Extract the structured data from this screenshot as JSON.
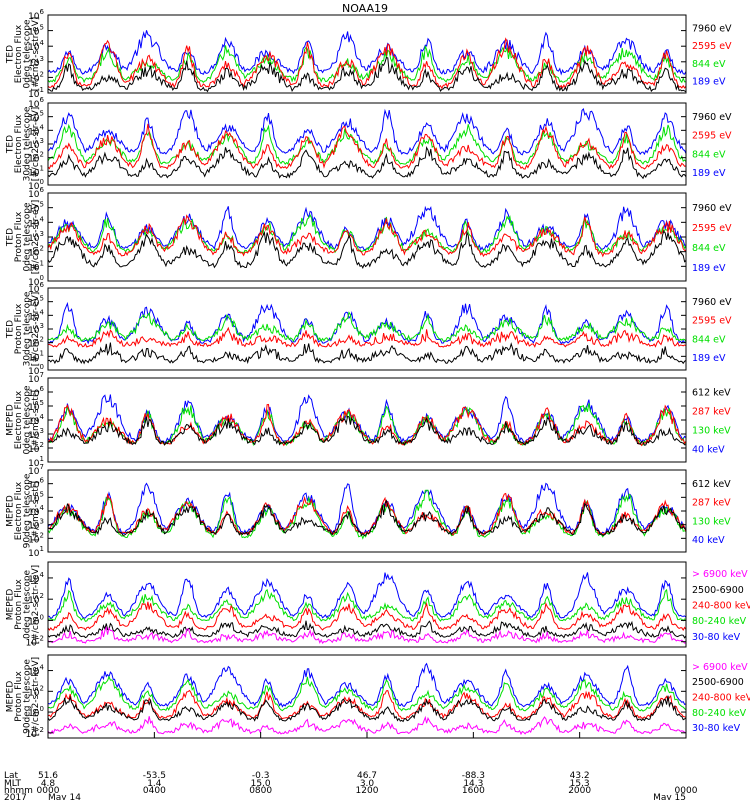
{
  "title": "NOAA19",
  "colors": {
    "black": "#000000",
    "blue": "#0000ff",
    "red": "#ff0000",
    "green": "#00e000",
    "magenta": "#ff00ff"
  },
  "ylabel_tick_bases": [
    "10"
  ],
  "chart_data": [
    {
      "type": "line",
      "instrument": "TED",
      "ylabel": [
        "TED",
        "Electron Flux",
        "0deg telescope",
        "[#/cm2-s-str-eV]"
      ],
      "ytick_exponents": [
        1,
        2,
        3,
        4,
        5,
        6
      ],
      "ylim_log10": [
        1,
        6
      ],
      "legend": [
        {
          "label": "7960 eV",
          "color": "#000000"
        },
        {
          "label": "2595 eV",
          "color": "#ff0000"
        },
        {
          "label": "844 eV",
          "color": "#00e000"
        },
        {
          "label": "189 eV",
          "color": "#0000ff"
        }
      ],
      "series_levels_log10": [
        {
          "color": "#0000ff",
          "base": 2.3,
          "amp": 2.3
        },
        {
          "color": "#00e000",
          "base": 1.8,
          "amp": 2.0
        },
        {
          "color": "#ff0000",
          "base": 1.4,
          "amp": 2.6
        },
        {
          "color": "#000000",
          "base": 1.2,
          "amp": 1.6
        }
      ]
    },
    {
      "type": "line",
      "instrument": "TED",
      "ylabel": [
        "TED",
        "Electron Flux",
        "30deg telescope",
        "[#/cm2-s-str-eV]"
      ],
      "ytick_exponents": [
        0,
        1,
        2,
        3,
        4,
        5,
        6
      ],
      "ylim_log10": [
        0,
        6
      ],
      "legend": [
        {
          "label": "7960 eV",
          "color": "#000000"
        },
        {
          "label": "2595 eV",
          "color": "#ff0000"
        },
        {
          "label": "844 eV",
          "color": "#00e000"
        },
        {
          "label": "189 eV",
          "color": "#0000ff"
        }
      ],
      "series_levels_log10": [
        {
          "color": "#0000ff",
          "base": 2.3,
          "amp": 3.0
        },
        {
          "color": "#00e000",
          "base": 1.6,
          "amp": 2.4
        },
        {
          "color": "#ff0000",
          "base": 1.2,
          "amp": 2.8
        },
        {
          "color": "#000000",
          "base": 0.6,
          "amp": 1.8
        }
      ]
    },
    {
      "type": "line",
      "instrument": "TED",
      "ylabel": [
        "TED",
        "Proton Flux",
        "0deg telescope",
        "[#/cm2-s-str-eV]"
      ],
      "ytick_exponents": [
        0,
        1,
        2,
        3,
        4,
        5,
        6
      ],
      "ylim_log10": [
        0,
        6
      ],
      "legend": [
        {
          "label": "7960 eV",
          "color": "#000000"
        },
        {
          "label": "2595 eV",
          "color": "#ff0000"
        },
        {
          "label": "844 eV",
          "color": "#00e000"
        },
        {
          "label": "189 eV",
          "color": "#0000ff"
        }
      ],
      "series_levels_log10": [
        {
          "color": "#0000ff",
          "base": 2.2,
          "amp": 2.6
        },
        {
          "color": "#00e000",
          "base": 2.0,
          "amp": 2.2
        },
        {
          "color": "#ff0000",
          "base": 1.8,
          "amp": 2.2
        },
        {
          "color": "#000000",
          "base": 1.0,
          "amp": 2.0
        }
      ]
    },
    {
      "type": "line",
      "instrument": "TED",
      "ylabel": [
        "TED",
        "Proton Flux",
        "30deg telescope",
        "[#/cm2-s-str-eV]"
      ],
      "ytick_exponents": [
        0,
        1,
        2,
        3,
        4,
        5,
        6
      ],
      "ylim_log10": [
        0,
        6
      ],
      "legend": [
        {
          "label": "7960 eV",
          "color": "#000000"
        },
        {
          "label": "2595 eV",
          "color": "#ff0000"
        },
        {
          "label": "844 eV",
          "color": "#00e000"
        },
        {
          "label": "189 eV",
          "color": "#0000ff"
        }
      ],
      "series_levels_log10": [
        {
          "color": "#0000ff",
          "base": 2.0,
          "amp": 2.6
        },
        {
          "color": "#00e000",
          "base": 2.2,
          "amp": 1.6
        },
        {
          "color": "#ff0000",
          "base": 1.8,
          "amp": 0.8
        },
        {
          "color": "#000000",
          "base": 0.6,
          "amp": 1.0
        }
      ]
    },
    {
      "type": "line",
      "instrument": "MEPED",
      "ylabel": [
        "MEPED",
        "Electron Flux",
        "0deg telescope",
        "[#/cm2-s-str]"
      ],
      "ytick_exponents": [
        1,
        2,
        3,
        4,
        5,
        6,
        7
      ],
      "ylim_log10": [
        1,
        7
      ],
      "legend": [
        {
          "label": "612 keV",
          "color": "#000000"
        },
        {
          "label": "287 keV",
          "color": "#ff0000"
        },
        {
          "label": "130 keV",
          "color": "#00e000"
        },
        {
          "label": "40 keV",
          "color": "#0000ff"
        }
      ],
      "series_levels_log10": [
        {
          "color": "#0000ff",
          "base": 2.5,
          "amp": 3.0
        },
        {
          "color": "#00e000",
          "base": 2.3,
          "amp": 2.6
        },
        {
          "color": "#ff0000",
          "base": 2.3,
          "amp": 2.4
        },
        {
          "color": "#000000",
          "base": 2.3,
          "amp": 1.6
        }
      ]
    },
    {
      "type": "line",
      "instrument": "MEPED",
      "ylabel": [
        "MEPED",
        "Electron Flux",
        "90deg telescope",
        "[#/cm2-s-str]"
      ],
      "ytick_exponents": [
        1,
        2,
        3,
        4,
        5,
        6,
        7
      ],
      "ylim_log10": [
        1,
        7
      ],
      "legend": [
        {
          "label": "612 keV",
          "color": "#000000"
        },
        {
          "label": "287 keV",
          "color": "#ff0000"
        },
        {
          "label": "130 keV",
          "color": "#00e000"
        },
        {
          "label": "40 keV",
          "color": "#0000ff"
        }
      ],
      "series_levels_log10": [
        {
          "color": "#0000ff",
          "base": 2.4,
          "amp": 3.4
        },
        {
          "color": "#00e000",
          "base": 2.1,
          "amp": 3.0
        },
        {
          "color": "#ff0000",
          "base": 2.3,
          "amp": 2.6
        },
        {
          "color": "#000000",
          "base": 2.3,
          "amp": 2.0
        }
      ]
    },
    {
      "type": "line",
      "instrument": "MEPED",
      "ylabel": [
        "MEPED",
        "Proton Flux",
        "0deg telescope",
        "[#/cm2-s-str-keV]"
      ],
      "ytick_exponents": [
        -2,
        0,
        2,
        4
      ],
      "ylim_log10": [
        -2.5,
        5.5
      ],
      "legend": [
        {
          "label": "> 6900 keV",
          "color": "#ff00ff"
        },
        {
          "label": "2500-6900",
          "color": "#000000"
        },
        {
          "label": "240-800 keV",
          "color": "#ff0000"
        },
        {
          "label": "80-240 keV",
          "color": "#00e000"
        },
        {
          "label": "30-80 keV",
          "color": "#0000ff"
        }
      ],
      "series_levels_log10": [
        {
          "color": "#0000ff",
          "base": 0.3,
          "amp": 3.8
        },
        {
          "color": "#00e000",
          "base": 0.0,
          "amp": 2.4
        },
        {
          "color": "#ff0000",
          "base": -0.8,
          "amp": 2.2
        },
        {
          "color": "#000000",
          "base": -1.5,
          "amp": 1.2
        },
        {
          "color": "#ff00ff",
          "base": -2.0,
          "amp": 0.9
        }
      ]
    },
    {
      "type": "line",
      "instrument": "MEPED",
      "ylabel": [
        "MEPED",
        "Proton Flux",
        "90deg telescope",
        "[#/cm2-s-str-keV]"
      ],
      "ytick_exponents": [
        -2,
        0,
        2,
        4
      ],
      "ylim_log10": [
        -2.5,
        5.5
      ],
      "legend": [
        {
          "label": "> 6900 keV",
          "color": "#ff00ff"
        },
        {
          "label": "2500-6900",
          "color": "#000000"
        },
        {
          "label": "240-800 keV",
          "color": "#ff0000"
        },
        {
          "label": "80-240 keV",
          "color": "#00e000"
        },
        {
          "label": "30-80 keV",
          "color": "#0000ff"
        }
      ],
      "series_levels_log10": [
        {
          "color": "#0000ff",
          "base": 0.6,
          "amp": 3.6
        },
        {
          "color": "#00e000",
          "base": 0.2,
          "amp": 2.8
        },
        {
          "color": "#ff0000",
          "base": -0.6,
          "amp": 2.4
        },
        {
          "color": "#000000",
          "base": -0.8,
          "amp": 2.0
        },
        {
          "color": "#ff00ff",
          "base": -2.0,
          "amp": 1.2
        }
      ]
    }
  ],
  "x_axis": {
    "row_labels": [
      "Lat",
      "MLT",
      "hhmm",
      "2017"
    ],
    "columns": [
      {
        "frac": 0.0,
        "lat": "51.6",
        "mlt": "4.8",
        "hhmm": "0000",
        "date": "May 14"
      },
      {
        "frac": 0.1667,
        "lat": "-53.5",
        "mlt": "1.4",
        "hhmm": "0400",
        "date": ""
      },
      {
        "frac": 0.3333,
        "lat": "-0.3",
        "mlt": "15.0",
        "hhmm": "0800",
        "date": ""
      },
      {
        "frac": 0.5,
        "lat": "46.7",
        "mlt": "3.0",
        "hhmm": "1200",
        "date": ""
      },
      {
        "frac": 0.6667,
        "lat": "-88.3",
        "mlt": "14.3",
        "hhmm": "1600",
        "date": ""
      },
      {
        "frac": 0.8333,
        "lat": "43.2",
        "mlt": "15.3",
        "hhmm": "2000",
        "date": ""
      },
      {
        "frac": 1.0,
        "lat": "",
        "mlt": "",
        "hhmm": "0000",
        "date": "May 15"
      }
    ]
  }
}
